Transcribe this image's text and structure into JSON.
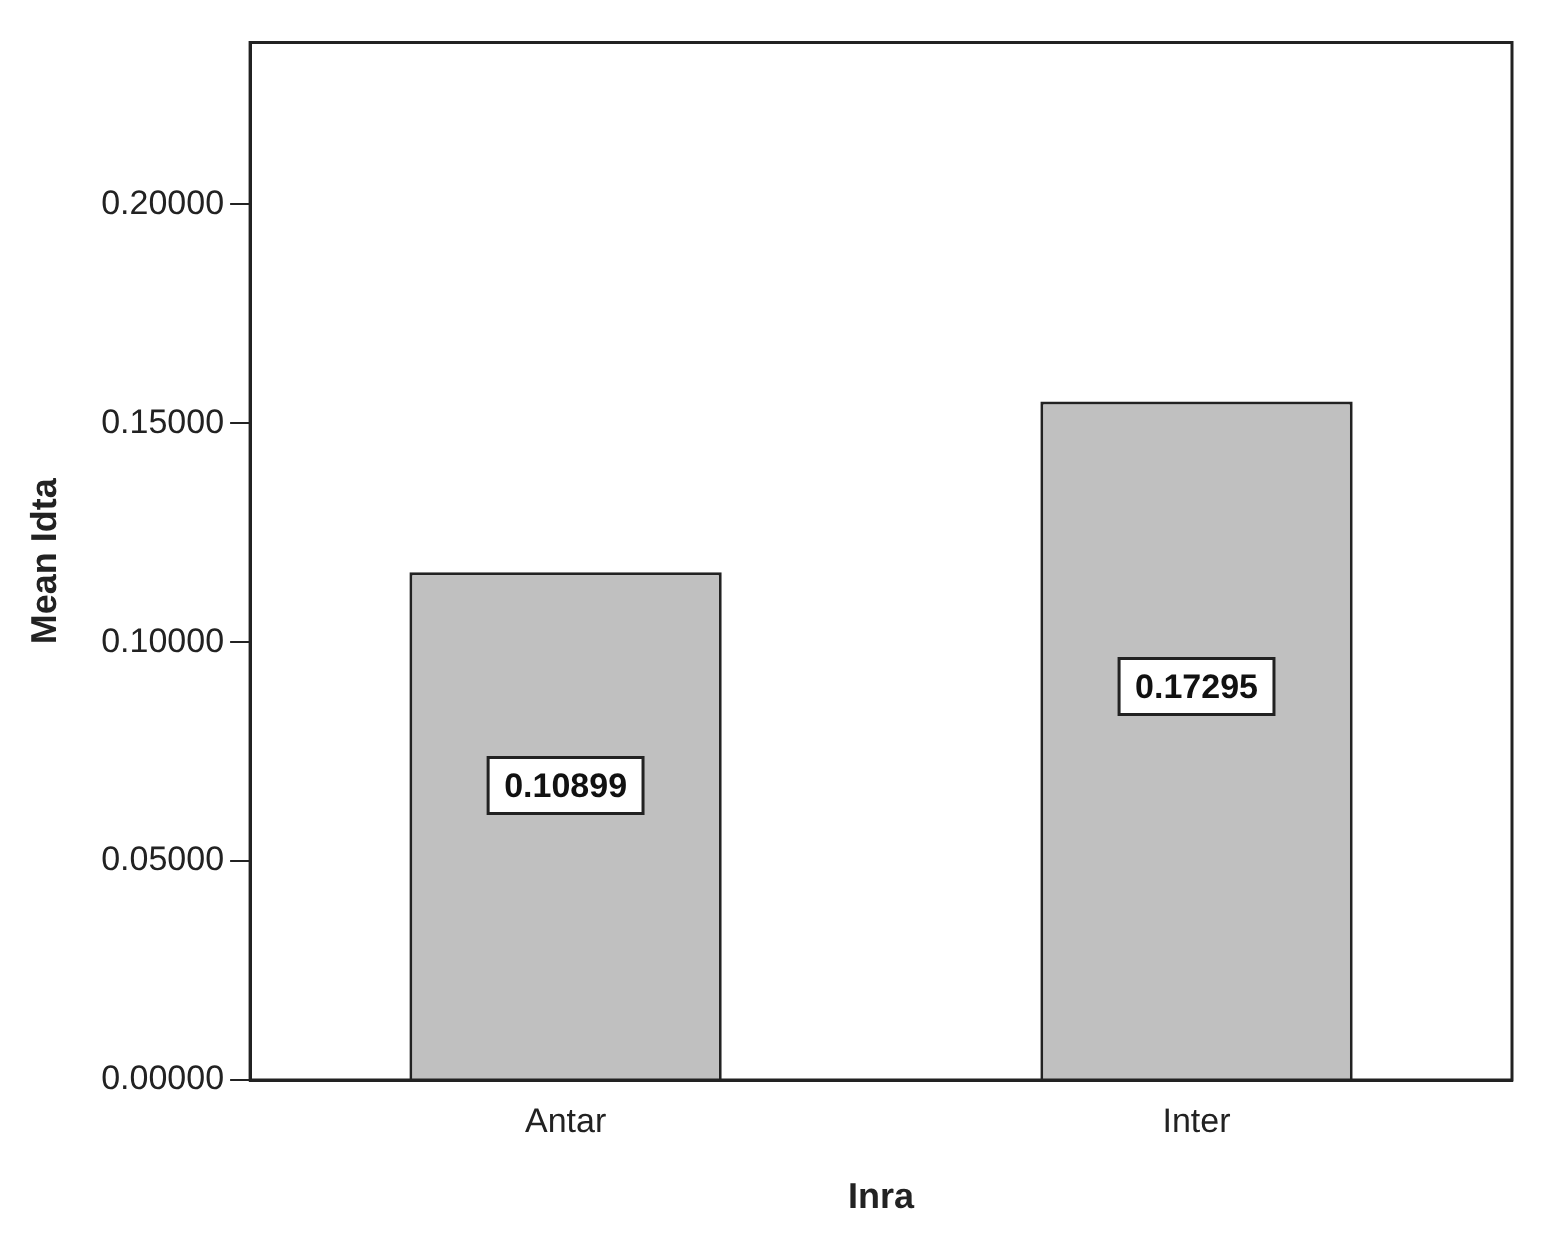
{
  "chart_data": {
    "type": "bar",
    "xlabel": "Inra",
    "ylabel": "Mean Idta",
    "categories": [
      "Antar",
      "Inter"
    ],
    "values": [
      0.116,
      0.155
    ],
    "annotations": [
      "0.10899",
      "0.17295"
    ],
    "color": "#c0c0c0",
    "ylim": [
      0,
      0.237
    ],
    "yticks": [
      {
        "value": 0,
        "label": "0.00000"
      },
      {
        "value": 0.05,
        "label": "0.05000"
      },
      {
        "value": 0.1,
        "label": "0.10000"
      },
      {
        "value": 0.15,
        "label": "0.15000"
      },
      {
        "value": 0.2,
        "label": "0.20000"
      }
    ],
    "grid": false,
    "legend": false
  }
}
